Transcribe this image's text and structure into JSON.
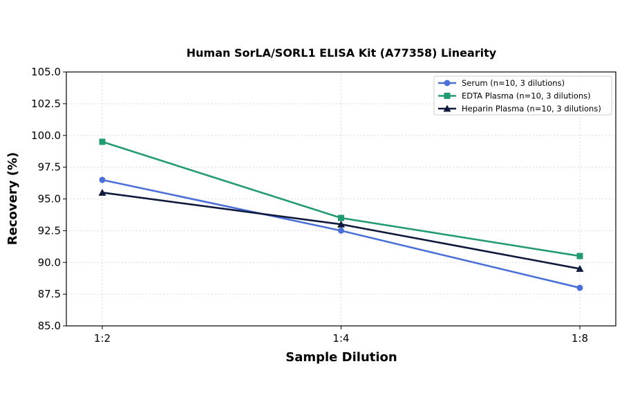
{
  "chart_data": {
    "type": "line",
    "title": "Human SorLA/SORL1 ELISA Kit (A77358) Linearity",
    "xlabel": "Sample Dilution",
    "ylabel": "Recovery (%)",
    "categories": [
      "1:2",
      "1:4",
      "1:8"
    ],
    "ylim": [
      85.0,
      105.0
    ],
    "yticks": [
      "85.0",
      "87.5",
      "90.0",
      "92.5",
      "95.0",
      "97.5",
      "100.0",
      "102.5",
      "105.0"
    ],
    "grid": true,
    "legend_position": "top-right",
    "series": [
      {
        "name": "Serum (n=10, 3 dilutions)",
        "values": [
          96.5,
          92.5,
          88.0
        ],
        "color": "#4a6fd8",
        "marker": "circle"
      },
      {
        "name": "EDTA Plasma (n=10, 3 dilutions)",
        "values": [
          99.5,
          93.5,
          90.5
        ],
        "color": "#239b72",
        "marker": "square"
      },
      {
        "name": "Heparin Plasma (n=10, 3 dilutions)",
        "values": [
          95.5,
          93.0,
          89.5
        ],
        "color": "#0f1a3c",
        "marker": "triangle"
      }
    ]
  }
}
